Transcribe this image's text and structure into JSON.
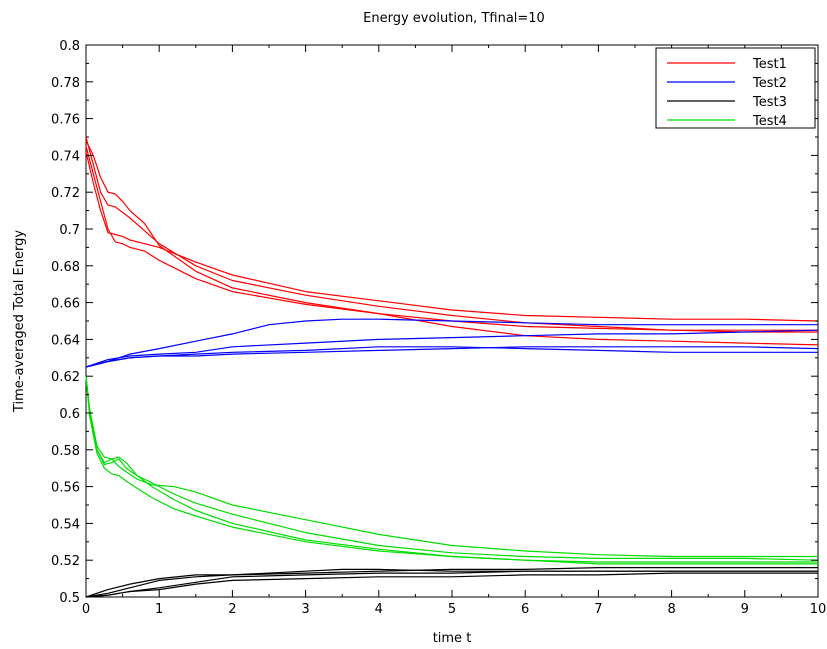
{
  "chart_data": {
    "type": "line",
    "title": "Energy evolution, Tfinal=10",
    "xlabel": "time t",
    "ylabel": "Time-averaged Total Energy",
    "xlim": [
      0,
      10
    ],
    "ylim": [
      0.5,
      0.8
    ],
    "xticks": [
      0,
      1,
      2,
      3,
      4,
      5,
      6,
      7,
      8,
      9,
      10
    ],
    "yticks": [
      0.5,
      0.52,
      0.54,
      0.56,
      0.58,
      0.6,
      0.62,
      0.64,
      0.66,
      0.68,
      0.7,
      0.72,
      0.74,
      0.76,
      0.78,
      0.8
    ],
    "xtick_labels": [
      "0",
      "1",
      "2",
      "3",
      "4",
      "5",
      "6",
      "7",
      "8",
      "9",
      "10"
    ],
    "ytick_labels": [
      "0.5",
      "0.52",
      "0.54",
      "0.56",
      "0.58",
      "0.6",
      "0.62",
      "0.64",
      "0.66",
      "0.68",
      "0.7",
      "0.72",
      "0.74",
      "0.76",
      "0.78",
      "0.8"
    ],
    "legend_position": "top-right",
    "grid": false,
    "series": [
      {
        "name": "Test1",
        "color": "#ff0000",
        "runs": [
          [
            [
              0,
              0.75
            ],
            [
              0.1,
              0.735
            ],
            [
              0.2,
              0.72
            ],
            [
              0.3,
              0.713
            ],
            [
              0.4,
              0.712
            ],
            [
              0.5,
              0.709
            ],
            [
              0.6,
              0.706
            ],
            [
              0.8,
              0.699
            ],
            [
              1,
              0.692
            ],
            [
              1.5,
              0.68
            ],
            [
              2,
              0.672
            ],
            [
              3,
              0.664
            ],
            [
              4,
              0.658
            ],
            [
              5,
              0.653
            ],
            [
              6,
              0.649
            ],
            [
              7,
              0.647
            ],
            [
              8,
              0.645
            ],
            [
              9,
              0.644
            ],
            [
              10,
              0.644
            ]
          ],
          [
            [
              0,
              0.745
            ],
            [
              0.1,
              0.73
            ],
            [
              0.2,
              0.715
            ],
            [
              0.3,
              0.7
            ],
            [
              0.4,
              0.693
            ],
            [
              0.5,
              0.692
            ],
            [
              0.6,
              0.69
            ],
            [
              0.8,
              0.688
            ],
            [
              1,
              0.683
            ],
            [
              1.5,
              0.673
            ],
            [
              2,
              0.666
            ],
            [
              3,
              0.659
            ],
            [
              4,
              0.654
            ],
            [
              5,
              0.65
            ],
            [
              6,
              0.647
            ],
            [
              7,
              0.646
            ],
            [
              8,
              0.645
            ],
            [
              9,
              0.645
            ],
            [
              10,
              0.645
            ]
          ],
          [
            [
              0,
              0.748
            ],
            [
              0.1,
              0.74
            ],
            [
              0.2,
              0.728
            ],
            [
              0.3,
              0.72
            ],
            [
              0.4,
              0.719
            ],
            [
              0.5,
              0.715
            ],
            [
              0.6,
              0.71
            ],
            [
              0.8,
              0.703
            ],
            [
              1,
              0.691
            ],
            [
              1.5,
              0.677
            ],
            [
              2,
              0.668
            ],
            [
              3,
              0.66
            ],
            [
              4,
              0.654
            ],
            [
              5,
              0.647
            ],
            [
              6,
              0.642
            ],
            [
              7,
              0.64
            ],
            [
              8,
              0.639
            ],
            [
              9,
              0.638
            ],
            [
              10,
              0.637
            ]
          ],
          [
            [
              0,
              0.742
            ],
            [
              0.1,
              0.725
            ],
            [
              0.2,
              0.71
            ],
            [
              0.3,
              0.698
            ],
            [
              0.4,
              0.697
            ],
            [
              0.5,
              0.696
            ],
            [
              0.6,
              0.694
            ],
            [
              0.8,
              0.692
            ],
            [
              1,
              0.69
            ],
            [
              1.5,
              0.682
            ],
            [
              2,
              0.675
            ],
            [
              3,
              0.666
            ],
            [
              4,
              0.661
            ],
            [
              5,
              0.656
            ],
            [
              6,
              0.653
            ],
            [
              7,
              0.652
            ],
            [
              8,
              0.651
            ],
            [
              9,
              0.651
            ],
            [
              10,
              0.65
            ]
          ]
        ]
      },
      {
        "name": "Test2",
        "color": "#0000ff",
        "runs": [
          [
            [
              0,
              0.625
            ],
            [
              0.3,
              0.628
            ],
            [
              0.6,
              0.632
            ],
            [
              1,
              0.635
            ],
            [
              1.5,
              0.639
            ],
            [
              2,
              0.643
            ],
            [
              2.5,
              0.648
            ],
            [
              3,
              0.65
            ],
            [
              3.5,
              0.651
            ],
            [
              4,
              0.651
            ],
            [
              5,
              0.65
            ],
            [
              6,
              0.649
            ],
            [
              7,
              0.648
            ],
            [
              8,
              0.648
            ],
            [
              9,
              0.648
            ],
            [
              10,
              0.648
            ]
          ],
          [
            [
              0,
              0.625
            ],
            [
              0.3,
              0.629
            ],
            [
              0.6,
              0.631
            ],
            [
              1,
              0.632
            ],
            [
              1.5,
              0.633
            ],
            [
              2,
              0.636
            ],
            [
              3,
              0.638
            ],
            [
              4,
              0.64
            ],
            [
              5,
              0.641
            ],
            [
              6,
              0.642
            ],
            [
              7,
              0.643
            ],
            [
              8,
              0.643
            ],
            [
              9,
              0.644
            ],
            [
              10,
              0.645
            ]
          ],
          [
            [
              0,
              0.625
            ],
            [
              0.3,
              0.628
            ],
            [
              0.6,
              0.63
            ],
            [
              1,
              0.631
            ],
            [
              1.5,
              0.632
            ],
            [
              2,
              0.633
            ],
            [
              3,
              0.634
            ],
            [
              4,
              0.636
            ],
            [
              5,
              0.636
            ],
            [
              6,
              0.635
            ],
            [
              7,
              0.634
            ],
            [
              8,
              0.633
            ],
            [
              9,
              0.633
            ],
            [
              10,
              0.633
            ]
          ],
          [
            [
              0,
              0.625
            ],
            [
              0.3,
              0.628
            ],
            [
              0.6,
              0.63
            ],
            [
              1,
              0.631
            ],
            [
              1.5,
              0.631
            ],
            [
              2,
              0.632
            ],
            [
              3,
              0.633
            ],
            [
              4,
              0.634
            ],
            [
              5,
              0.635
            ],
            [
              6,
              0.636
            ],
            [
              7,
              0.636
            ],
            [
              8,
              0.636
            ],
            [
              9,
              0.636
            ],
            [
              10,
              0.635
            ]
          ]
        ]
      },
      {
        "name": "Test3",
        "color": "#000000",
        "runs": [
          [
            [
              0,
              0.5
            ],
            [
              0.3,
              0.502
            ],
            [
              0.6,
              0.505
            ],
            [
              1,
              0.509
            ],
            [
              1.5,
              0.511
            ],
            [
              2,
              0.512
            ],
            [
              3,
              0.513
            ],
            [
              4,
              0.514
            ],
            [
              5,
              0.515
            ],
            [
              6,
              0.515
            ],
            [
              7,
              0.516
            ],
            [
              8,
              0.516
            ],
            [
              9,
              0.516
            ],
            [
              10,
              0.516
            ]
          ],
          [
            [
              0,
              0.5
            ],
            [
              0.3,
              0.501
            ],
            [
              0.6,
              0.503
            ],
            [
              1,
              0.505
            ],
            [
              1.5,
              0.508
            ],
            [
              2,
              0.511
            ],
            [
              3,
              0.512
            ],
            [
              4,
              0.513
            ],
            [
              5,
              0.513
            ],
            [
              6,
              0.514
            ],
            [
              7,
              0.514
            ],
            [
              8,
              0.514
            ],
            [
              9,
              0.514
            ],
            [
              10,
              0.514
            ]
          ],
          [
            [
              0,
              0.5
            ],
            [
              0.3,
              0.504
            ],
            [
              0.6,
              0.507
            ],
            [
              1,
              0.51
            ],
            [
              1.5,
              0.512
            ],
            [
              2,
              0.512
            ],
            [
              3,
              0.514
            ],
            [
              3.5,
              0.515
            ],
            [
              4,
              0.515
            ],
            [
              5,
              0.514
            ],
            [
              6,
              0.514
            ],
            [
              7,
              0.514
            ],
            [
              8,
              0.514
            ],
            [
              9,
              0.514
            ],
            [
              10,
              0.514
            ]
          ],
          [
            [
              0,
              0.5
            ],
            [
              0.3,
              0.501
            ],
            [
              0.6,
              0.503
            ],
            [
              1,
              0.504
            ],
            [
              1.5,
              0.507
            ],
            [
              2,
              0.509
            ],
            [
              3,
              0.51
            ],
            [
              4,
              0.511
            ],
            [
              5,
              0.511
            ],
            [
              6,
              0.512
            ],
            [
              7,
              0.512
            ],
            [
              8,
              0.513
            ],
            [
              9,
              0.513
            ],
            [
              10,
              0.513
            ]
          ]
        ]
      },
      {
        "name": "Test4",
        "color": "#00dd00",
        "runs": [
          [
            [
              0,
              0.62
            ],
            [
              0.05,
              0.6
            ],
            [
              0.15,
              0.58
            ],
            [
              0.25,
              0.572
            ],
            [
              0.35,
              0.573
            ],
            [
              0.45,
              0.575
            ],
            [
              0.55,
              0.57
            ],
            [
              0.7,
              0.566
            ],
            [
              0.9,
              0.56
            ],
            [
              1.2,
              0.553
            ],
            [
              1.5,
              0.547
            ],
            [
              2,
              0.54
            ],
            [
              3,
              0.531
            ],
            [
              4,
              0.526
            ],
            [
              5,
              0.522
            ],
            [
              6,
              0.52
            ],
            [
              7,
              0.519
            ],
            [
              8,
              0.519
            ],
            [
              9,
              0.519
            ],
            [
              10,
              0.519
            ]
          ],
          [
            [
              0,
              0.62
            ],
            [
              0.05,
              0.598
            ],
            [
              0.15,
              0.578
            ],
            [
              0.25,
              0.57
            ],
            [
              0.35,
              0.567
            ],
            [
              0.45,
              0.566
            ],
            [
              0.55,
              0.563
            ],
            [
              0.7,
              0.559
            ],
            [
              0.9,
              0.554
            ],
            [
              1.2,
              0.548
            ],
            [
              1.5,
              0.544
            ],
            [
              2,
              0.538
            ],
            [
              3,
              0.53
            ],
            [
              4,
              0.525
            ],
            [
              5,
              0.522
            ],
            [
              6,
              0.52
            ],
            [
              7,
              0.518
            ],
            [
              8,
              0.518
            ],
            [
              9,
              0.518
            ],
            [
              10,
              0.518
            ]
          ],
          [
            [
              0,
              0.62
            ],
            [
              0.05,
              0.6
            ],
            [
              0.15,
              0.58
            ],
            [
              0.25,
              0.573
            ],
            [
              0.35,
              0.575
            ],
            [
              0.45,
              0.576
            ],
            [
              0.55,
              0.573
            ],
            [
              0.7,
              0.566
            ],
            [
              0.9,
              0.562
            ],
            [
              1.2,
              0.556
            ],
            [
              1.5,
              0.551
            ],
            [
              2,
              0.545
            ],
            [
              3,
              0.535
            ],
            [
              4,
              0.528
            ],
            [
              5,
              0.524
            ],
            [
              6,
              0.522
            ],
            [
              7,
              0.521
            ],
            [
              8,
              0.521
            ],
            [
              9,
              0.521
            ],
            [
              10,
              0.52
            ]
          ],
          [
            [
              0,
              0.62
            ],
            [
              0.05,
              0.602
            ],
            [
              0.15,
              0.582
            ],
            [
              0.25,
              0.576
            ],
            [
              0.35,
              0.575
            ],
            [
              0.45,
              0.571
            ],
            [
              0.55,
              0.568
            ],
            [
              0.7,
              0.564
            ],
            [
              0.9,
              0.561
            ],
            [
              1.2,
              0.56
            ],
            [
              1.5,
              0.557
            ],
            [
              2,
              0.55
            ],
            [
              3,
              0.542
            ],
            [
              4,
              0.534
            ],
            [
              5,
              0.528
            ],
            [
              6,
              0.525
            ],
            [
              7,
              0.523
            ],
            [
              8,
              0.522
            ],
            [
              9,
              0.522
            ],
            [
              10,
              0.522
            ]
          ]
        ]
      }
    ]
  }
}
